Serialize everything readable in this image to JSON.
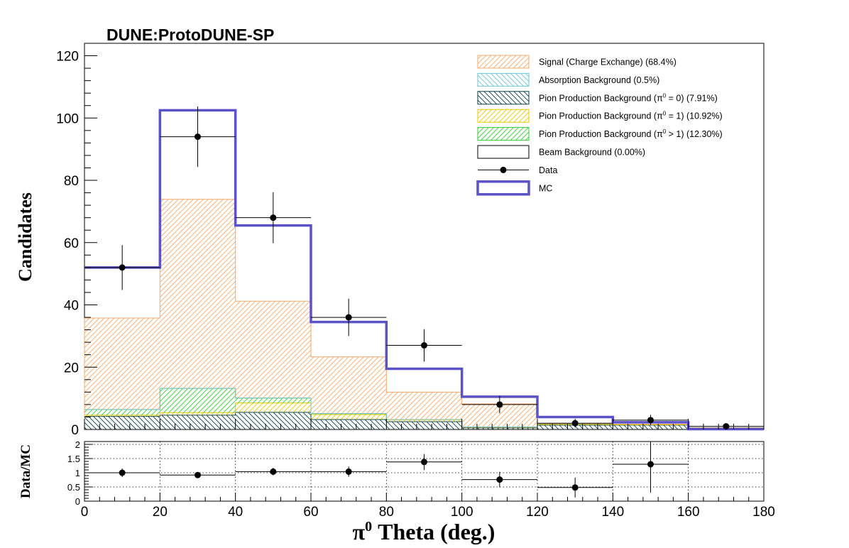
{
  "title": "DUNE:ProtoDUNE-SP",
  "chart_data": {
    "type": "histogram",
    "xlabel_main": "π",
    "xlabel_sup": "0",
    "xlabel_rest": " Theta (deg.)",
    "ylabel": "Candidates",
    "ratio_ylabel": "Data/MC",
    "xlim": [
      0,
      180
    ],
    "ylim": [
      0,
      124
    ],
    "ratio_ylim": [
      0,
      2.1
    ],
    "x_ticks": [
      "0",
      "20",
      "40",
      "60",
      "80",
      "100",
      "120",
      "140",
      "160",
      "180"
    ],
    "y_ticks": [
      "0",
      "20",
      "40",
      "60",
      "80",
      "100",
      "120"
    ],
    "ratio_ticks": [
      "0",
      "0.5",
      "1",
      "1.5",
      "2"
    ],
    "bin_edges": [
      0,
      20,
      40,
      60,
      80,
      100,
      120,
      140,
      160,
      180
    ],
    "stack": [
      {
        "name": "Pion Production Background (π⁰ = 0)",
        "label_main": "Pion Production Background (π",
        "label_sup": "0",
        "label_end": " = 0) (7.91%)",
        "color": "#0b3d46",
        "hatch": "back",
        "values": [
          4.2,
          4.6,
          5.5,
          3.2,
          2.5,
          0.5,
          1.4,
          1.4,
          0.5
        ]
      },
      {
        "name": "Pion Production Background (π⁰ = 1)",
        "label_main": "Pion Production Background (π",
        "label_sup": "0",
        "label_end": " = 1) (10.92%)",
        "color": "#e8c800",
        "hatch": "fwd",
        "values": [
          0.4,
          0.8,
          3.0,
          1.6,
          0.6,
          0.2,
          0.2,
          0.1,
          0.0
        ]
      },
      {
        "name": "Pion Production Background (π⁰ > 1)",
        "label_main": "Pion Production Background (π",
        "label_sup": "0",
        "label_end": " > 1) (12.30%)",
        "color": "#33cc33",
        "hatch": "fwd",
        "values": [
          1.8,
          7.8,
          1.6,
          0.3,
          0.1,
          0.1,
          0.3,
          0.2,
          0.0
        ]
      },
      {
        "name": "Absorption Background (0.5%)",
        "label_main": "Absorption Background (0.5%)",
        "label_sup": "",
        "label_end": "",
        "color": "#6fc4d9",
        "hatch": "back",
        "values": [
          0.0,
          0.0,
          0.0,
          0.0,
          0.0,
          0.0,
          0.0,
          0.0,
          0.0
        ]
      },
      {
        "name": "Signal (Charge Exchange) (68.4%)",
        "label_main": "Signal (Charge Exchange) (68.4%)",
        "label_sup": "",
        "label_end": "",
        "color": "#f5a86b",
        "hatch": "fwd",
        "values": [
          29.4,
          60.7,
          31.1,
          18.2,
          8.8,
          7.4,
          0.0,
          0.0,
          0.0
        ]
      }
    ],
    "mc": {
      "name": "MC",
      "color": "#5b52c8",
      "values": [
        52.0,
        102.5,
        65.5,
        34.5,
        19.5,
        10.5,
        4.0,
        2.3,
        0.1
      ]
    },
    "data": {
      "name": "Data",
      "x": [
        10,
        30,
        50,
        70,
        90,
        110,
        130,
        150,
        170
      ],
      "y": [
        52,
        94,
        68,
        36,
        27,
        8,
        2,
        3,
        1
      ],
      "yerr": [
        7.2,
        9.7,
        8.2,
        6.0,
        5.2,
        2.8,
        1.4,
        1.7,
        1.0
      ]
    },
    "ratio": {
      "x": [
        10,
        30,
        50,
        70,
        90,
        110,
        130,
        150
      ],
      "y": [
        1.0,
        0.92,
        1.04,
        1.04,
        1.38,
        0.76,
        0.48,
        1.3
      ],
      "yerr": [
        0.15,
        0.1,
        0.13,
        0.18,
        0.28,
        0.27,
        0.35,
        1.0
      ]
    }
  },
  "legend": [
    {
      "kind": "hatch",
      "color": "#f5a86b",
      "hatch": "fwd",
      "text": "Signal (Charge Exchange) (68.4%)",
      "sup": "",
      "end": ""
    },
    {
      "kind": "hatch",
      "color": "#6fc4d9",
      "hatch": "back",
      "text": "Absorption Background (0.5%)",
      "sup": "",
      "end": ""
    },
    {
      "kind": "hatch",
      "color": "#0b3d46",
      "hatch": "back",
      "text": "Pion Production Background (π",
      "sup": "0",
      "end": " = 0) (7.91%)"
    },
    {
      "kind": "hatch",
      "color": "#e8c800",
      "hatch": "fwd",
      "text": "Pion Production Background (π",
      "sup": "0",
      "end": " = 1) (10.92%)"
    },
    {
      "kind": "hatch",
      "color": "#33cc33",
      "hatch": "fwd",
      "text": "Pion Production Background (π",
      "sup": "0",
      "end": " > 1) (12.30%)"
    },
    {
      "kind": "box",
      "color": "#000000",
      "hatch": "",
      "text": "Beam Background (0.00%)",
      "sup": "",
      "end": ""
    },
    {
      "kind": "data",
      "color": "#000000",
      "hatch": "",
      "text": "Data",
      "sup": "",
      "end": ""
    },
    {
      "kind": "mc",
      "color": "#5b52c8",
      "hatch": "",
      "text": "MC",
      "sup": "",
      "end": ""
    }
  ]
}
